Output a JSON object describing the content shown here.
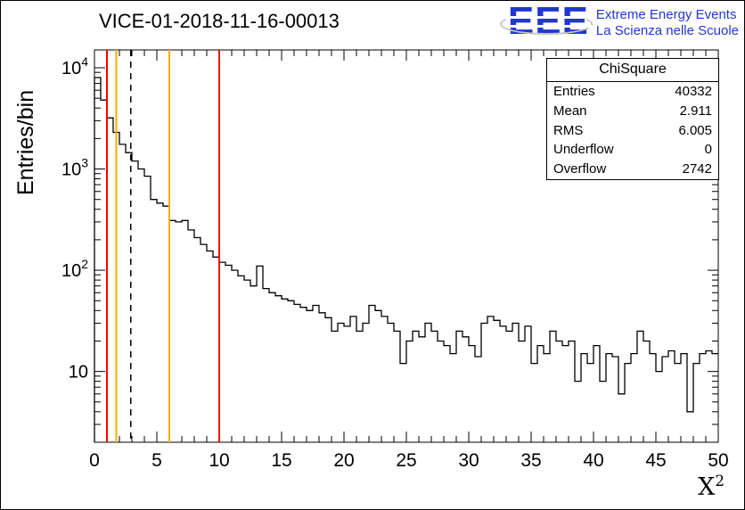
{
  "title": "VICE-01-2018-11-16-00013",
  "logo": {
    "acronym": "EEE",
    "line1": "Extreme Energy Events",
    "line2": "La Scienza nelle Scuole",
    "color": "#2236d4"
  },
  "stats": {
    "header": "ChiSquare",
    "rows": [
      {
        "label": "Entries",
        "value": "40332"
      },
      {
        "label": "Mean",
        "value": "2.911"
      },
      {
        "label": "RMS",
        "value": "6.005"
      },
      {
        "label": "Underflow",
        "value": "0"
      },
      {
        "label": "Overflow",
        "value": "2742"
      }
    ]
  },
  "axes": {
    "xlabel_base": "X",
    "xlabel_exp": "2"
  },
  "chart_data": {
    "type": "bar",
    "style": "step-histogram",
    "title": "VICE-01-2018-11-16-00013",
    "xlabel": "X^2",
    "ylabel": "Entries/bin",
    "yscale": "log",
    "xlim": [
      0,
      50
    ],
    "ylim": [
      2,
      15000
    ],
    "grid": false,
    "bin_start": 0,
    "bin_width": 0.5,
    "values": [
      8000,
      4800,
      3200,
      2300,
      1750,
      1450,
      1200,
      1000,
      850,
      500,
      460,
      430,
      310,
      300,
      310,
      250,
      210,
      180,
      155,
      135,
      120,
      112,
      100,
      88,
      80,
      70,
      110,
      66,
      60,
      56,
      52,
      50,
      46,
      43,
      40,
      45,
      38,
      34,
      25,
      30,
      28,
      35,
      25,
      30,
      45,
      40,
      35,
      30,
      25,
      12,
      20,
      25,
      22,
      30,
      25,
      20,
      18,
      15,
      25,
      22,
      18,
      14,
      30,
      35,
      32,
      28,
      25,
      30,
      20,
      28,
      12,
      18,
      15,
      25,
      20,
      18,
      20,
      8,
      15,
      12,
      18,
      8,
      15,
      14,
      6,
      12,
      15,
      25,
      20,
      15,
      10,
      14,
      16,
      12,
      15,
      4,
      12,
      15,
      16,
      15
    ],
    "line_color": "#000000",
    "vlines": [
      {
        "x": 1.0,
        "color": "#ff0000",
        "style": "solid"
      },
      {
        "x": 1.75,
        "color": "#ffaa00",
        "style": "solid"
      },
      {
        "x": 2.911,
        "color": "#000000",
        "style": "dashed"
      },
      {
        "x": 6.0,
        "color": "#ffaa00",
        "style": "solid"
      },
      {
        "x": 10.0,
        "color": "#ff0000",
        "style": "solid"
      }
    ],
    "x_ticks": [
      {
        "v": 0,
        "label": "0"
      },
      {
        "v": 5,
        "label": "5"
      },
      {
        "v": 10,
        "label": "10"
      },
      {
        "v": 15,
        "label": "15"
      },
      {
        "v": 20,
        "label": "20"
      },
      {
        "v": 25,
        "label": "25"
      },
      {
        "v": 30,
        "label": "30"
      },
      {
        "v": 35,
        "label": "35"
      },
      {
        "v": 40,
        "label": "40"
      },
      {
        "v": 45,
        "label": "45"
      },
      {
        "v": 50,
        "label": "50"
      }
    ],
    "y_ticks": [
      {
        "v": 10,
        "base": "10",
        "exp": ""
      },
      {
        "v": 100,
        "base": "10",
        "exp": "2"
      },
      {
        "v": 1000,
        "base": "10",
        "exp": "3"
      },
      {
        "v": 10000,
        "base": "10",
        "exp": "4"
      }
    ]
  }
}
